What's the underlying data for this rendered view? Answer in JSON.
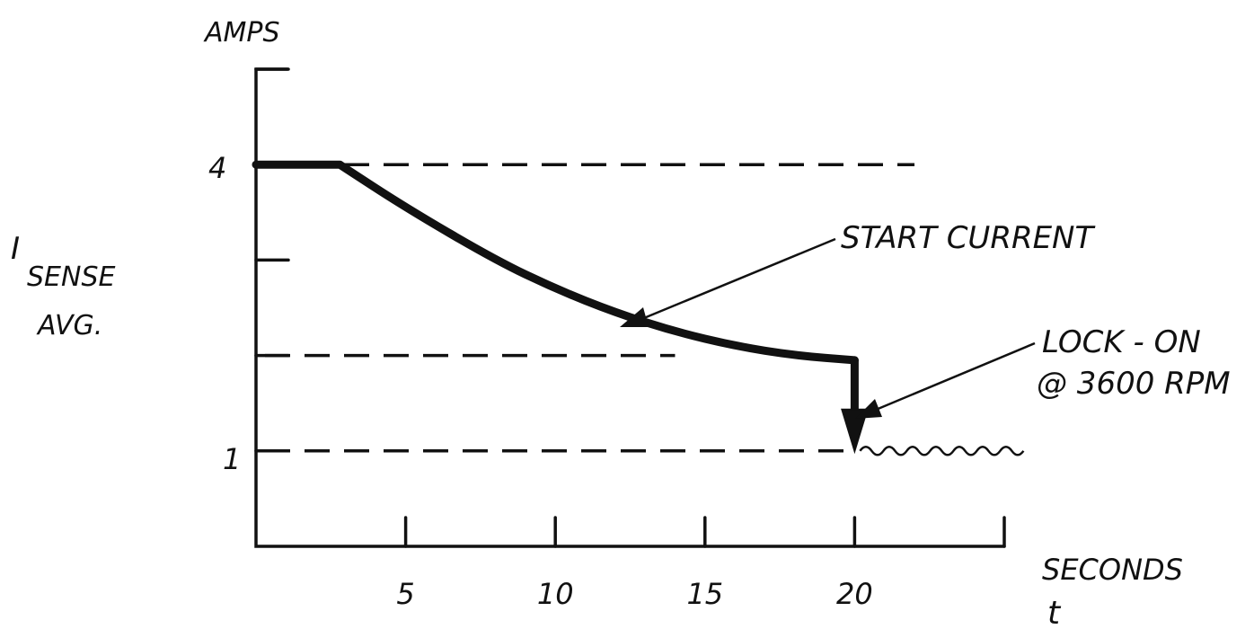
{
  "chart_data": {
    "type": "line",
    "title": "",
    "ylabel_top": "AMPS",
    "ylabel_main": "I",
    "ylabel_sub": "SENSE",
    "ylabel_line2": "AVG.",
    "xlabel": "SECONDS",
    "xlabel_symbol": "t",
    "xlim": [
      0,
      25
    ],
    "ylim": [
      0,
      5
    ],
    "x_ticks": [
      5,
      10,
      15,
      20,
      25
    ],
    "x_tick_labels": [
      "5",
      "10",
      "15",
      "20"
    ],
    "y_ticks": [
      1,
      2,
      3,
      4,
      5
    ],
    "y_tick_labels": {
      "y4": "4",
      "y1": "1"
    },
    "reference_levels": [
      4,
      2,
      1
    ],
    "series": [
      {
        "name": "START CURRENT",
        "x": [
          0,
          2.8,
          5,
          8,
          10,
          12,
          14,
          16,
          18,
          20,
          20
        ],
        "y": [
          4,
          4,
          3.55,
          3.0,
          2.7,
          2.45,
          2.25,
          2.1,
          2.0,
          1.95,
          1.0
        ]
      }
    ],
    "steady_ripple": {
      "x_start": 20,
      "x_end": 26,
      "level": 1
    },
    "annotations": {
      "start_current": "START CURRENT",
      "lock_on_line1": "LOCK - ON",
      "lock_on_line2": "@ 3600 RPM"
    }
  }
}
